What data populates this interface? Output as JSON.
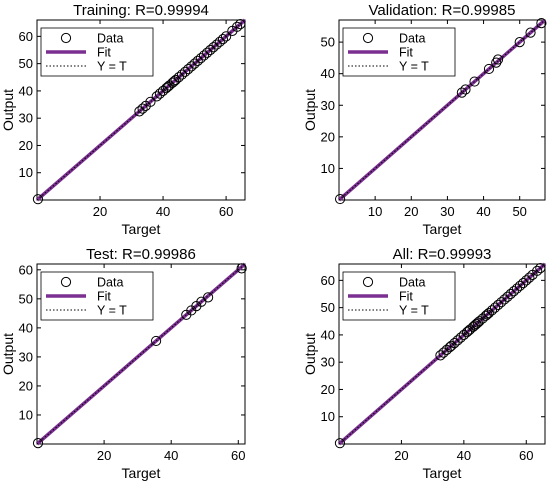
{
  "colors": {
    "fit": "#7b2f91",
    "data_marker": "#000000",
    "identity": "#000000",
    "axes": "#000000",
    "background": "#ffffff"
  },
  "legend_labels": {
    "data": "Data",
    "fit": "Fit",
    "identity": "Y = T"
  },
  "chart_data": [
    {
      "type": "scatter",
      "title": "Training: R=0.99994",
      "xlabel": "Target",
      "ylabel": "Output",
      "xlim": [
        0,
        66
      ],
      "ylim": [
        0,
        66
      ],
      "xticks": [
        20,
        40,
        60
      ],
      "yticks": [
        10,
        20,
        30,
        40,
        50,
        60
      ],
      "legend_position": "top-left",
      "grid": false,
      "series": [
        {
          "name": "Data",
          "x": [
            0.3,
            32.5,
            33.5,
            34.5,
            36,
            38,
            39,
            40,
            41,
            41.5,
            42,
            43,
            43.5,
            44,
            45,
            46,
            47,
            48,
            49,
            50,
            51,
            52,
            53,
            54,
            55,
            56,
            57,
            58,
            59,
            60,
            62,
            63.5,
            64.5
          ],
          "y": [
            0.3,
            32.5,
            33.5,
            34.5,
            36,
            38,
            39,
            40,
            41,
            41.5,
            42,
            43,
            43.5,
            44,
            45,
            46,
            47,
            48,
            49,
            50,
            51,
            52,
            53,
            54,
            55,
            56,
            57,
            58,
            59,
            60,
            62,
            63.5,
            64.5
          ]
        },
        {
          "name": "Fit",
          "x": [
            0,
            66
          ],
          "y": [
            0,
            66
          ]
        },
        {
          "name": "Y = T",
          "x": [
            0,
            66
          ],
          "y": [
            0,
            66
          ]
        }
      ]
    },
    {
      "type": "scatter",
      "title": "Validation: R=0.99985",
      "xlabel": "Target",
      "ylabel": "Output",
      "xlim": [
        0,
        57
      ],
      "ylim": [
        0,
        57
      ],
      "xticks": [
        10,
        20,
        30,
        40,
        50
      ],
      "yticks": [
        10,
        20,
        30,
        40,
        50
      ],
      "legend_position": "top-left",
      "grid": false,
      "series": [
        {
          "name": "Data",
          "x": [
            0.3,
            34,
            35,
            37.5,
            41.5,
            43.5,
            44,
            50,
            53,
            56
          ],
          "y": [
            0.3,
            34,
            35,
            37.5,
            41.5,
            43.5,
            44.5,
            50,
            53,
            56
          ]
        },
        {
          "name": "Fit",
          "x": [
            0,
            57
          ],
          "y": [
            0,
            57
          ]
        },
        {
          "name": "Y = T",
          "x": [
            0,
            57
          ],
          "y": [
            0,
            57
          ]
        }
      ]
    },
    {
      "type": "scatter",
      "title": "Test: R=0.99986",
      "xlabel": "Target",
      "ylabel": "Output",
      "xlim": [
        0,
        62
      ],
      "ylim": [
        0,
        62
      ],
      "xticks": [
        20,
        40,
        60
      ],
      "yticks": [
        10,
        20,
        30,
        40,
        50,
        60
      ],
      "legend_position": "top-left",
      "grid": false,
      "series": [
        {
          "name": "Data",
          "x": [
            0.3,
            35.5,
            44.5,
            46,
            47.5,
            49,
            51,
            61
          ],
          "y": [
            0.3,
            35.5,
            44.5,
            46,
            47.5,
            49,
            50.5,
            60.5
          ]
        },
        {
          "name": "Fit",
          "x": [
            0,
            62
          ],
          "y": [
            0,
            62
          ]
        },
        {
          "name": "Y = T",
          "x": [
            0,
            62
          ],
          "y": [
            0,
            62
          ]
        }
      ]
    },
    {
      "type": "scatter",
      "title": "All: R=0.99993",
      "xlabel": "Target",
      "ylabel": "Output",
      "xlim": [
        0,
        66
      ],
      "ylim": [
        0,
        66
      ],
      "xticks": [
        20,
        40,
        60
      ],
      "yticks": [
        10,
        20,
        30,
        40,
        50,
        60
      ],
      "legend_position": "top-left",
      "grid": false,
      "series": [
        {
          "name": "Data",
          "x": [
            0.3,
            32.5,
            33.5,
            34.5,
            35.5,
            36,
            37,
            38,
            39,
            40,
            41,
            41.5,
            42,
            43,
            43.5,
            44,
            44.5,
            45,
            46,
            47,
            47.5,
            48,
            49,
            50,
            51,
            52,
            53,
            54,
            55,
            56,
            57,
            58,
            59,
            60,
            61,
            62,
            63.5,
            64.5
          ],
          "y": [
            0.3,
            32.5,
            33.5,
            34.5,
            35.5,
            36,
            37,
            38,
            39,
            40,
            41,
            41.5,
            42,
            43,
            43.5,
            44,
            44.5,
            45,
            46,
            47,
            47.5,
            48,
            49,
            50,
            51,
            52,
            53,
            54,
            55,
            56,
            57,
            58,
            59,
            60,
            61,
            62,
            63.5,
            64.5
          ]
        },
        {
          "name": "Fit",
          "x": [
            0,
            66
          ],
          "y": [
            0,
            66
          ]
        },
        {
          "name": "Y = T",
          "x": [
            0,
            66
          ],
          "y": [
            0,
            66
          ]
        }
      ]
    }
  ]
}
